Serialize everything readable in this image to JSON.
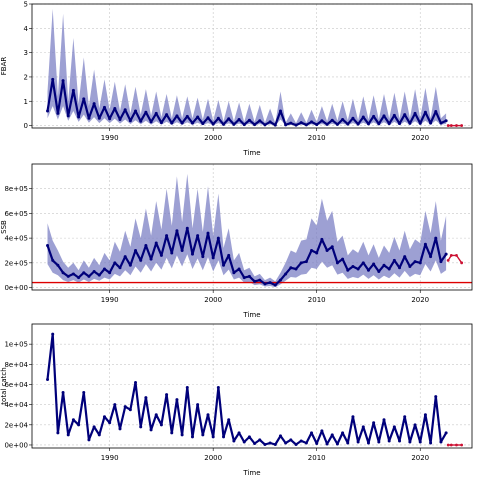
{
  "chart_data": [
    {
      "type": "line",
      "xlabel": "Time",
      "ylabel": "FBAR",
      "xlim": [
        1982.5,
        2025.0
      ],
      "ylim": [
        -0.1,
        5.0
      ],
      "x_ticks": [
        1990,
        2000,
        2010,
        2020
      ],
      "y_ticks": [
        0,
        1,
        2,
        3,
        4,
        5
      ],
      "y_tick_labels": [
        "0",
        "1",
        "2",
        "3",
        "4",
        "5"
      ],
      "grid": true,
      "series": [
        {
          "x": [
            1984.0,
            1984.5,
            1985.0,
            1985.5,
            1986.0,
            1986.5,
            1987.0,
            1987.5,
            1988.0,
            1988.5,
            1989.0,
            1989.5,
            1990.0,
            1990.5,
            1991.0,
            1991.5,
            1992.0,
            1992.5,
            1993.0,
            1993.5,
            1994.0,
            1994.5,
            1995.0,
            1995.5,
            1996.0,
            1996.5,
            1997.0,
            1997.5,
            1998.0,
            1998.5,
            1999.0,
            1999.5,
            2000.0,
            2000.5,
            2001.0,
            2001.5,
            2002.0,
            2002.5,
            2003.0,
            2003.5,
            2004.0,
            2004.5,
            2005.0,
            2005.5,
            2006.0,
            2006.5,
            2007.0,
            2007.5,
            2008.0,
            2008.5,
            2009.0,
            2009.5,
            2010.0,
            2010.5,
            2011.0,
            2011.5,
            2012.0,
            2012.5,
            2013.0,
            2013.5,
            2014.0,
            2014.5,
            2015.0,
            2015.5,
            2016.0,
            2016.5,
            2017.0,
            2017.5,
            2018.0,
            2018.5,
            2019.0,
            2019.5,
            2020.0,
            2020.5,
            2021.0,
            2021.5,
            2022.0,
            2022.5
          ],
          "y": [
            0.6,
            1.9,
            0.5,
            1.85,
            0.4,
            1.45,
            0.35,
            1.1,
            0.3,
            0.9,
            0.3,
            0.75,
            0.28,
            0.7,
            0.25,
            0.65,
            0.2,
            0.6,
            0.18,
            0.55,
            0.15,
            0.5,
            0.12,
            0.45,
            0.1,
            0.4,
            0.1,
            0.38,
            0.1,
            0.35,
            0.08,
            0.32,
            0.06,
            0.3,
            0.05,
            0.28,
            0.05,
            0.25,
            0.04,
            0.22,
            0.04,
            0.2,
            0.03,
            0.15,
            0.02,
            0.6,
            0.03,
            0.1,
            0.02,
            0.12,
            0.03,
            0.15,
            0.04,
            0.2,
            0.05,
            0.22,
            0.05,
            0.25,
            0.06,
            0.3,
            0.06,
            0.35,
            0.07,
            0.38,
            0.07,
            0.4,
            0.08,
            0.42,
            0.08,
            0.45,
            0.09,
            0.5,
            0.09,
            0.55,
            0.1,
            0.58,
            0.1,
            0.2
          ],
          "lower": [
            0.3,
            0.8,
            0.25,
            0.8,
            0.2,
            0.6,
            0.15,
            0.45,
            0.12,
            0.35,
            0.1,
            0.3,
            0.1,
            0.28,
            0.08,
            0.25,
            0.06,
            0.22,
            0.05,
            0.2,
            0.04,
            0.18,
            0.03,
            0.16,
            0.03,
            0.14,
            0.03,
            0.13,
            0.03,
            0.12,
            0.02,
            0.1,
            0.02,
            0.1,
            0.01,
            0.09,
            0.01,
            0.08,
            0.01,
            0.07,
            0.01,
            0.06,
            0.01,
            0.05,
            0.0,
            0.25,
            0.01,
            0.03,
            0.0,
            0.04,
            0.01,
            0.05,
            0.01,
            0.06,
            0.01,
            0.07,
            0.01,
            0.08,
            0.02,
            0.1,
            0.02,
            0.12,
            0.02,
            0.13,
            0.02,
            0.14,
            0.02,
            0.15,
            0.02,
            0.16,
            0.03,
            0.18,
            0.03,
            0.2,
            0.03,
            0.21,
            0.03,
            0.07
          ],
          "upper": [
            1.4,
            4.8,
            1.2,
            4.6,
            1.0,
            3.6,
            0.9,
            2.8,
            0.8,
            2.3,
            0.7,
            1.9,
            0.65,
            1.8,
            0.6,
            1.7,
            0.5,
            1.6,
            0.45,
            1.5,
            0.4,
            1.4,
            0.35,
            1.3,
            0.3,
            1.25,
            0.3,
            1.2,
            0.3,
            1.15,
            0.25,
            1.1,
            0.2,
            1.05,
            0.18,
            1.0,
            0.18,
            0.95,
            0.15,
            0.9,
            0.15,
            0.85,
            0.12,
            0.7,
            0.1,
            1.4,
            0.12,
            0.5,
            0.1,
            0.55,
            0.12,
            0.65,
            0.15,
            0.8,
            0.18,
            0.9,
            0.2,
            1.0,
            0.22,
            1.1,
            0.22,
            1.2,
            0.25,
            1.25,
            0.25,
            1.3,
            0.28,
            1.35,
            0.28,
            1.4,
            0.3,
            1.5,
            0.3,
            1.55,
            0.3,
            1.6,
            0.3,
            0.5
          ]
        },
        {
          "x": [
            2022.7,
            2023.0,
            2023.5,
            2024.0
          ],
          "y": [
            0.0,
            0.0,
            0.0,
            0.0
          ]
        }
      ],
      "colors": {
        "band": "#7378c0",
        "line": "#00007a",
        "projection": "#cc1133"
      }
    },
    {
      "type": "line",
      "xlabel": "Time",
      "ylabel": "SSB",
      "xlim": [
        1982.5,
        2025.0
      ],
      "ylim": [
        -20000,
        1000000
      ],
      "x_ticks": [
        1990,
        2000,
        2010,
        2020
      ],
      "y_ticks": [
        0,
        200000,
        400000,
        600000,
        800000
      ],
      "y_tick_labels": [
        "0e+00",
        "2e+05",
        "4e+05",
        "6e+05",
        "8e+05"
      ],
      "grid": true,
      "reference_line": 40000,
      "series": [
        {
          "x": [
            1984.0,
            1984.5,
            1985.0,
            1985.5,
            1986.0,
            1986.5,
            1987.0,
            1987.5,
            1988.0,
            1988.5,
            1989.0,
            1989.5,
            1990.0,
            1990.5,
            1991.0,
            1991.5,
            1992.0,
            1992.5,
            1993.0,
            1993.5,
            1994.0,
            1994.5,
            1995.0,
            1995.5,
            1996.0,
            1996.5,
            1997.0,
            1997.5,
            1998.0,
            1998.5,
            1999.0,
            1999.5,
            2000.0,
            2000.5,
            2001.0,
            2001.5,
            2002.0,
            2002.5,
            2003.0,
            2003.5,
            2004.0,
            2004.5,
            2005.0,
            2005.5,
            2006.0,
            2006.5,
            2007.0,
            2007.5,
            2008.0,
            2008.5,
            2009.0,
            2009.5,
            2010.0,
            2010.5,
            2011.0,
            2011.5,
            2012.0,
            2012.5,
            2013.0,
            2013.5,
            2014.0,
            2014.5,
            2015.0,
            2015.5,
            2016.0,
            2016.5,
            2017.0,
            2017.5,
            2018.0,
            2018.5,
            2019.0,
            2019.5,
            2020.0,
            2020.5,
            2021.0,
            2021.5,
            2022.0,
            2022.5
          ],
          "y": [
            340000,
            220000,
            180000,
            120000,
            90000,
            110000,
            80000,
            120000,
            90000,
            130000,
            100000,
            150000,
            120000,
            200000,
            160000,
            250000,
            180000,
            300000,
            220000,
            340000,
            230000,
            360000,
            260000,
            420000,
            280000,
            460000,
            300000,
            480000,
            270000,
            420000,
            250000,
            440000,
            240000,
            400000,
            180000,
            260000,
            120000,
            150000,
            80000,
            90000,
            50000,
            60000,
            30000,
            40000,
            20000,
            60000,
            110000,
            160000,
            150000,
            200000,
            210000,
            300000,
            280000,
            390000,
            300000,
            330000,
            200000,
            230000,
            140000,
            170000,
            150000,
            200000,
            140000,
            190000,
            130000,
            180000,
            150000,
            220000,
            160000,
            250000,
            170000,
            210000,
            200000,
            350000,
            250000,
            400000,
            210000,
            270000
          ],
          "lower": [
            190000,
            120000,
            100000,
            60000,
            45000,
            60000,
            40000,
            65000,
            45000,
            70000,
            55000,
            80000,
            65000,
            110000,
            90000,
            140000,
            100000,
            170000,
            120000,
            190000,
            130000,
            200000,
            145000,
            240000,
            155000,
            260000,
            170000,
            270000,
            150000,
            235000,
            140000,
            245000,
            130000,
            220000,
            100000,
            145000,
            65000,
            80000,
            40000,
            45000,
            20000,
            25000,
            8000,
            12000,
            3000,
            25000,
            55000,
            85000,
            80000,
            105000,
            110000,
            160000,
            150000,
            210000,
            160000,
            180000,
            105000,
            120000,
            70000,
            85000,
            75000,
            105000,
            70000,
            100000,
            65000,
            95000,
            75000,
            115000,
            80000,
            135000,
            85000,
            110000,
            100000,
            190000,
            130000,
            220000,
            110000,
            140000
          ],
          "upper": [
            520000,
            380000,
            300000,
            210000,
            160000,
            200000,
            140000,
            220000,
            160000,
            240000,
            180000,
            280000,
            220000,
            370000,
            290000,
            460000,
            330000,
            560000,
            400000,
            640000,
            420000,
            700000,
            470000,
            800000,
            500000,
            900000,
            530000,
            920000,
            480000,
            800000,
            450000,
            820000,
            420000,
            760000,
            320000,
            480000,
            220000,
            280000,
            140000,
            160000,
            90000,
            110000,
            60000,
            80000,
            50000,
            120000,
            200000,
            300000,
            280000,
            380000,
            390000,
            560000,
            500000,
            720000,
            540000,
            620000,
            370000,
            420000,
            260000,
            310000,
            280000,
            370000,
            260000,
            350000,
            240000,
            340000,
            280000,
            410000,
            300000,
            460000,
            310000,
            390000,
            360000,
            620000,
            440000,
            700000,
            380000,
            580000
          ]
        },
        {
          "x": [
            2022.7,
            2023.0,
            2023.5,
            2024.0
          ],
          "y": [
            220000,
            260000,
            260000,
            200000
          ]
        }
      ],
      "colors": {
        "band": "#7378c0",
        "line": "#00007a",
        "projection": "#cc1133",
        "reference": "#dd0000"
      }
    },
    {
      "type": "line",
      "xlabel": "Time",
      "ylabel": "total catch",
      "xlim": [
        1982.5,
        2025.0
      ],
      "ylim": [
        -3000,
        120000
      ],
      "x_ticks": [
        1990,
        2000,
        2010,
        2020
      ],
      "y_ticks": [
        0,
        20000,
        40000,
        60000,
        80000,
        100000
      ],
      "y_tick_labels": [
        "0e+00",
        "2e+04",
        "4e+04",
        "6e+04",
        "8e+04",
        "1e+05"
      ],
      "grid": true,
      "series": [
        {
          "x": [
            1984.0,
            1984.5,
            1985.0,
            1985.5,
            1986.0,
            1986.5,
            1987.0,
            1987.5,
            1988.0,
            1988.5,
            1989.0,
            1989.5,
            1990.0,
            1990.5,
            1991.0,
            1991.5,
            1992.0,
            1992.5,
            1993.0,
            1993.5,
            1994.0,
            1994.5,
            1995.0,
            1995.5,
            1996.0,
            1996.5,
            1997.0,
            1997.5,
            1998.0,
            1998.5,
            1999.0,
            1999.5,
            2000.0,
            2000.5,
            2001.0,
            2001.5,
            2002.0,
            2002.5,
            2003.0,
            2003.5,
            2004.0,
            2004.5,
            2005.0,
            2005.5,
            2006.0,
            2006.5,
            2007.0,
            2007.5,
            2008.0,
            2008.5,
            2009.0,
            2009.5,
            2010.0,
            2010.5,
            2011.0,
            2011.5,
            2012.0,
            2012.5,
            2013.0,
            2013.5,
            2014.0,
            2014.5,
            2015.0,
            2015.5,
            2016.0,
            2016.5,
            2017.0,
            2017.5,
            2018.0,
            2018.5,
            2019.0,
            2019.5,
            2020.0,
            2020.5,
            2021.0,
            2021.5,
            2022.0,
            2022.5
          ],
          "y": [
            65000,
            110000,
            12000,
            52000,
            10000,
            25000,
            20000,
            52000,
            5000,
            18000,
            10000,
            28000,
            22000,
            40000,
            16000,
            38000,
            35000,
            62000,
            18000,
            47000,
            15000,
            30000,
            20000,
            50000,
            12000,
            45000,
            10000,
            57000,
            8000,
            40000,
            10000,
            30000,
            8000,
            57000,
            8000,
            25000,
            4000,
            12000,
            3000,
            8000,
            1500,
            5000,
            500,
            2000,
            500,
            9000,
            2000,
            5000,
            500,
            4000,
            2000,
            12000,
            1500,
            14000,
            1000,
            10000,
            1000,
            12000,
            2000,
            28000,
            3000,
            18000,
            2000,
            22000,
            3000,
            25000,
            4000,
            18000,
            4000,
            28000,
            3000,
            20000,
            3000,
            30000,
            2000,
            48000,
            3000,
            12000
          ],
          "lower": [],
          "upper": []
        },
        {
          "x": [
            2022.7,
            2023.0,
            2023.5,
            2024.0
          ],
          "y": [
            0,
            0,
            0,
            0
          ]
        }
      ],
      "colors": {
        "line": "#00007a",
        "projection": "#cc1133"
      }
    }
  ]
}
